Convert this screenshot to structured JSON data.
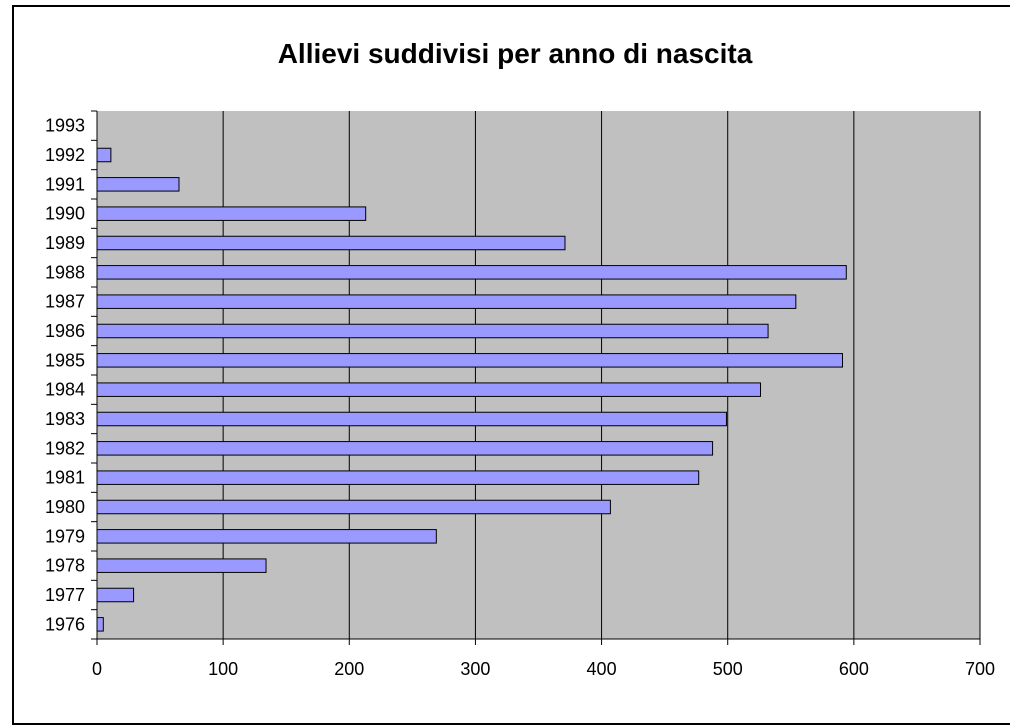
{
  "chart_data": {
    "type": "bar",
    "orientation": "horizontal",
    "title": "Allievi suddivisi per anno di nascita",
    "xlabel": "",
    "ylabel": "",
    "categories": [
      "1976",
      "1977",
      "1978",
      "1979",
      "1980",
      "1981",
      "1982",
      "1983",
      "1984",
      "1985",
      "1986",
      "1987",
      "1988",
      "1989",
      "1990",
      "1991",
      "1992",
      "1993"
    ],
    "values": [
      5,
      29,
      134,
      269,
      407,
      477,
      488,
      499,
      526,
      591,
      532,
      554,
      594,
      371,
      213,
      65,
      11,
      0
    ],
    "xlim": [
      0,
      700
    ],
    "xticks": [
      0,
      100,
      200,
      300,
      400,
      500,
      600,
      700
    ],
    "grid": true,
    "legend": "none",
    "colors": {
      "bar_fill": "#9999ff",
      "bar_stroke": "#000000",
      "plot_background": "#c0c0c0",
      "gridline": "#000000"
    }
  }
}
